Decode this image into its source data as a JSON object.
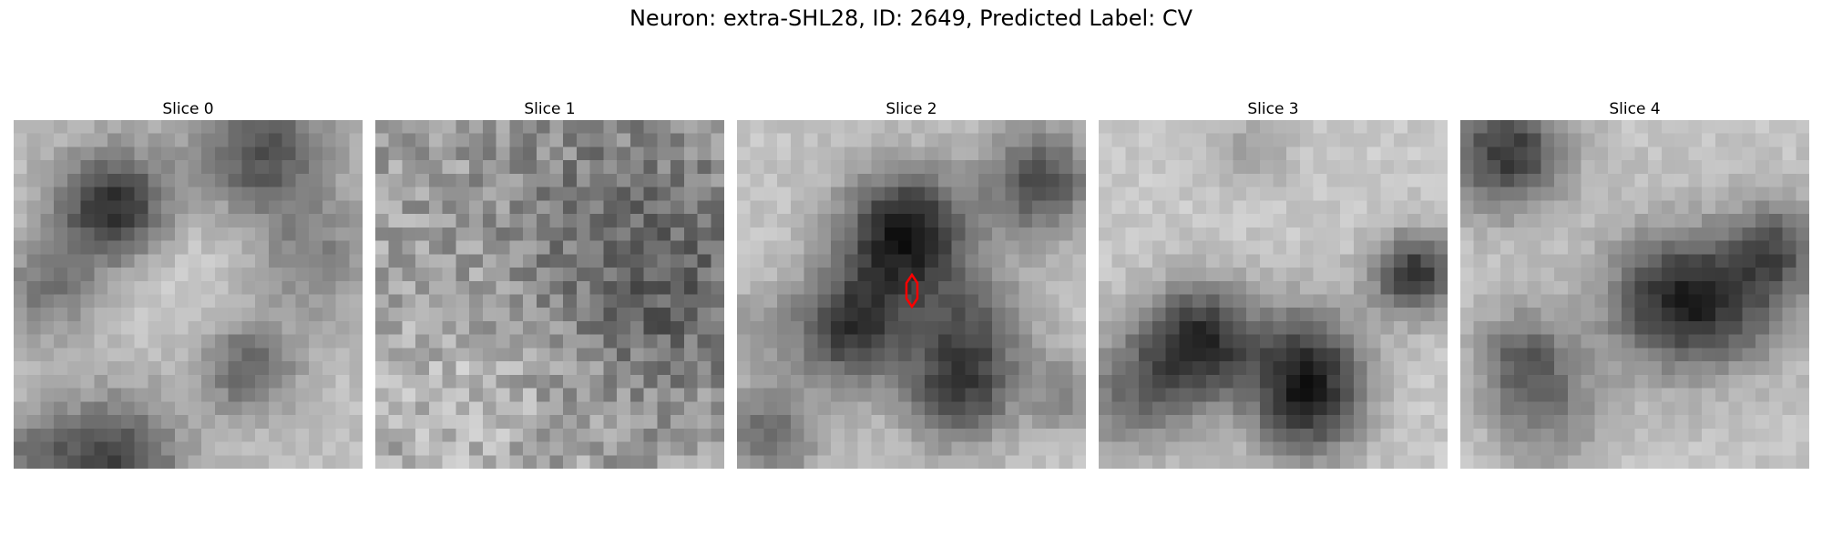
{
  "figure": {
    "title": "Neuron: extra-SHL28, ID: 2649, Predicted Label: CV"
  },
  "panels": [
    {
      "title": "Slice 0"
    },
    {
      "title": "Slice 1"
    },
    {
      "title": "Slice 2"
    },
    {
      "title": "Slice 3"
    },
    {
      "title": "Slice 4"
    }
  ],
  "colors": {
    "marker": "#ff0000",
    "colormap": "gray"
  },
  "image_grid": {
    "cols": 26,
    "rows": 26
  }
}
